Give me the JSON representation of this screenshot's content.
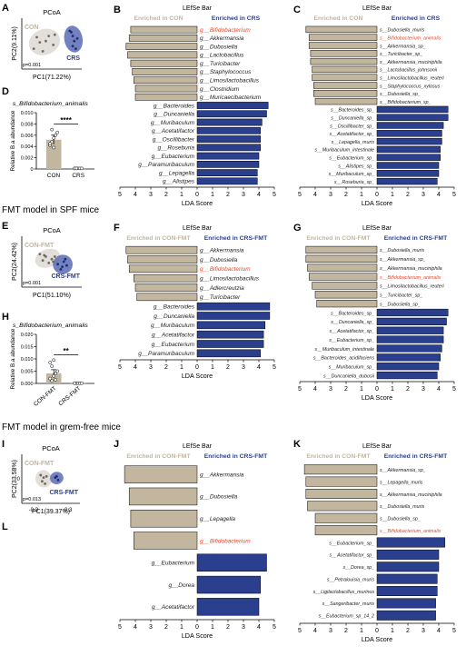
{
  "sections": [
    {
      "title": ""
    },
    {
      "title": "FMT model in SPF mice"
    },
    {
      "title": "FMT model in grem-free mice"
    }
  ],
  "colors": {
    "con": "#c2b69e",
    "crs": "#2b3f8f",
    "highlight": "#e8472a",
    "ellipse_con": "#d8d3cc",
    "ellipse_crs": "#5a6bb5"
  },
  "chart_data": [
    {
      "panel": "A",
      "type": "scatter",
      "title": "PCoA",
      "xlabel": "PC1(71.22%)",
      "ylabel": "PC2(9.11%)",
      "pvalue": "p=0.001",
      "series": [
        {
          "name": "CON",
          "color": "#c2b69e",
          "points": [
            [
              -0.5,
              0.25
            ],
            [
              -0.3,
              -0.3
            ],
            [
              -0.4,
              0.05
            ],
            [
              -0.1,
              0.3
            ],
            [
              -0.2,
              0.1
            ],
            [
              0.05,
              -0.05
            ],
            [
              -0.6,
              -0.2
            ],
            [
              0.1,
              0.35
            ]
          ]
        },
        {
          "name": "CRS",
          "color": "#2b3f8f",
          "points": [
            [
              0.6,
              0.5
            ],
            [
              0.7,
              0.3
            ],
            [
              0.75,
              0.1
            ],
            [
              0.8,
              -0.2
            ],
            [
              0.65,
              0.45
            ],
            [
              0.7,
              -0.1
            ],
            [
              0.85,
              0.2
            ]
          ]
        }
      ]
    },
    {
      "panel": "B",
      "type": "bar",
      "title": "LEfSe Bar",
      "legend_left": "Enriched in CON",
      "legend_right": "Enriched in CRS",
      "xlabel": "LDA Score",
      "xticks": [
        "5",
        "4",
        "3",
        "2",
        "1",
        "0",
        "1",
        "2",
        "3",
        "4",
        "5"
      ],
      "highlight": "g__Bifidobacterium",
      "bars": [
        {
          "label": "g__Bifidobacterium",
          "value": -4.3
        },
        {
          "label": "g__Akkermansia",
          "value": -4.4
        },
        {
          "label": "g__Dubosiella",
          "value": -4.6
        },
        {
          "label": "g__Lactobacillus",
          "value": -4.5
        },
        {
          "label": "g__Turicibacter",
          "value": -4.3
        },
        {
          "label": "g__Staphylococcus",
          "value": -4.2
        },
        {
          "label": "g__Limosilactobacillus",
          "value": -4.1
        },
        {
          "label": "g__Clostridium",
          "value": -4.0
        },
        {
          "label": "g__Muricaecibacterium",
          "value": -4.0
        },
        {
          "label": "g__Bacteroides",
          "value": 4.6
        },
        {
          "label": "g__Duncaniella",
          "value": 4.5
        },
        {
          "label": "g__Muribaculum",
          "value": 4.2
        },
        {
          "label": "g__Acetatifactor",
          "value": 4.1
        },
        {
          "label": "g__Oscillibacter",
          "value": 4.1
        },
        {
          "label": "g__Roseburia",
          "value": 4.1
        },
        {
          "label": "g__Eubacterium",
          "value": 4.0
        },
        {
          "label": "g__Paramuribaculum",
          "value": 4.0
        },
        {
          "label": "g__Lepagella",
          "value": 3.9
        },
        {
          "label": "g__Alistipes",
          "value": 3.9
        }
      ]
    },
    {
      "panel": "C",
      "type": "bar",
      "title": "LEfSe Bar",
      "legend_left": "Enriched in CON",
      "legend_right": "Enriched in CRS",
      "xlabel": "LDA Score",
      "xticks": [
        "5",
        "4",
        "3",
        "2",
        "1",
        "0",
        "1",
        "2",
        "3",
        "4",
        "5"
      ],
      "highlight": "s__Bifidobacterium_animalis",
      "bars": [
        {
          "label": "s__Dubosiella_muris",
          "value": -4.6
        },
        {
          "label": "s__Bifidobacterium_animalis",
          "value": -4.4
        },
        {
          "label": "s__Akkermansia_sp_",
          "value": -4.4
        },
        {
          "label": "s__Turicibacter_sp_",
          "value": -4.3
        },
        {
          "label": "s__Akkermansia_muciniphila",
          "value": -4.3
        },
        {
          "label": "s__Lactobacillus_johnsonii",
          "value": -4.2
        },
        {
          "label": "s__Limosilactobacillus_reuteri",
          "value": -4.2
        },
        {
          "label": "s__Staphylococcus_xylosus",
          "value": -4.1
        },
        {
          "label": "s__Dubosiella_sp_",
          "value": -4.1
        },
        {
          "label": "s__Bifidobacterium_sp_",
          "value": -4.0
        },
        {
          "label": "s__Bacteroides_sp_",
          "value": 4.6
        },
        {
          "label": "s__Duncaniella_sp_",
          "value": 4.6
        },
        {
          "label": "s__Oscillibacter_sp_",
          "value": 4.3
        },
        {
          "label": "s__Acetatifactor_sp_",
          "value": 4.2
        },
        {
          "label": "s__Lepagella_muris",
          "value": 4.2
        },
        {
          "label": "s__Muribaculum_intestinale",
          "value": 4.1
        },
        {
          "label": "s__Eubacterium_sp_",
          "value": 4.1
        },
        {
          "label": "s__Alistipes_sp_",
          "value": 4.0
        },
        {
          "label": "s__Muribaculum_sp_",
          "value": 4.0
        },
        {
          "label": "s__Roseburia_sp_",
          "value": 3.9
        }
      ]
    },
    {
      "panel": "D",
      "type": "bar",
      "title": "s_Bifidobacterium_animalis",
      "ylabel": "Relative B.a abundance",
      "categories": [
        "CON",
        "CRS"
      ],
      "values": [
        0.0052,
        0.0001
      ],
      "errors": [
        0.0008,
        5e-05
      ],
      "yticks": [
        "0",
        "0.002",
        "0.004",
        "0.006",
        "0.008",
        "0.010"
      ],
      "ylim": [
        0,
        0.01
      ],
      "significance": "****",
      "points": [
        [
          0.0042,
          0.0048,
          0.0055,
          0.006,
          0.0065,
          0.0045,
          0.007,
          0.0038
        ],
        [
          0.0001,
          0.0001,
          0.0001,
          0.0001,
          0.0001,
          0.0001,
          0.0001
        ]
      ]
    },
    {
      "panel": "E",
      "type": "scatter",
      "title": "PCoA",
      "xlabel": "PC1(51.10%)",
      "ylabel": "PC2(24.42%)",
      "pvalue": "p=0.001",
      "series": [
        {
          "name": "CON-FMT",
          "color": "#c2b69e",
          "points": [
            [
              -0.4,
              0.3
            ],
            [
              -0.2,
              0.2
            ],
            [
              -0.3,
              0.05
            ],
            [
              0.0,
              0.1
            ],
            [
              -0.1,
              -0.05
            ],
            [
              0.1,
              0.2
            ],
            [
              -0.25,
              0.25
            ],
            [
              0.05,
              0.0
            ]
          ]
        },
        {
          "name": "CRS-FMT",
          "color": "#2b3f8f",
          "points": [
            [
              0.2,
              -0.1
            ],
            [
              0.35,
              -0.2
            ],
            [
              0.4,
              0.0
            ],
            [
              0.5,
              -0.15
            ],
            [
              0.3,
              -0.3
            ],
            [
              0.45,
              0.1
            ]
          ]
        }
      ]
    },
    {
      "panel": "F",
      "type": "bar",
      "title": "LEfSe Bar",
      "legend_left": "Enriched in CON-FMT",
      "legend_right": "Enriched in CRS-FMT",
      "xlabel": "LDA Score",
      "xticks": [
        "5",
        "4",
        "3",
        "2",
        "1",
        "0",
        "1",
        "2",
        "3",
        "4",
        "5"
      ],
      "highlight": "g__Bifidobacterium",
      "bars": [
        {
          "label": "g__Akkermansia",
          "value": -4.6
        },
        {
          "label": "g__Dubosiella",
          "value": -4.5
        },
        {
          "label": "g__Bifidobacterium",
          "value": -4.4
        },
        {
          "label": "g__Limosilactobacillus",
          "value": -4.1
        },
        {
          "label": "g__Adlercreutzia",
          "value": -4.0
        },
        {
          "label": "g__Turicibacter",
          "value": -3.9
        },
        {
          "label": "g__Bacteroides",
          "value": 4.7
        },
        {
          "label": "g__Duncaniella",
          "value": 4.7
        },
        {
          "label": "g__Muribaculum",
          "value": 4.4
        },
        {
          "label": "g__Acetatifactor",
          "value": 4.3
        },
        {
          "label": "g__Eubacterium",
          "value": 4.3
        },
        {
          "label": "g__Paramuribaculum",
          "value": 4.1
        }
      ]
    },
    {
      "panel": "G",
      "type": "bar",
      "title": "LEfSe Bar",
      "legend_left": "Enriched in CON-FMT",
      "legend_right": "Enriched in CRS-FMT",
      "xlabel": "LDA Score",
      "xticks": [
        "5",
        "4",
        "3",
        "2",
        "1",
        "0",
        "1",
        "2",
        "3",
        "4",
        "5"
      ],
      "highlight": "s__Bifidobacterium_animalis",
      "bars": [
        {
          "label": "s__Dubosiella_muris",
          "value": -4.6
        },
        {
          "label": "s__Akkermansia_sp_",
          "value": -4.6
        },
        {
          "label": "s__Akkermansia_muciniphila",
          "value": -4.5
        },
        {
          "label": "s__Bifidobacterium_animalis",
          "value": -4.4
        },
        {
          "label": "s__Limosilactobacillus_reuteri",
          "value": -4.2
        },
        {
          "label": "s__Turicibacter_sp_",
          "value": -4.0
        },
        {
          "label": "s__Dubosiella_sp_",
          "value": -3.9
        },
        {
          "label": "s__Bacteroides_sp_",
          "value": 4.6
        },
        {
          "label": "s__Duncaniella_sp_",
          "value": 4.5
        },
        {
          "label": "s__Acetatifactor_sp_",
          "value": 4.3
        },
        {
          "label": "s__Eubacterium_sp_",
          "value": 4.3
        },
        {
          "label": "s__Muribaculum_intestinale",
          "value": 4.2
        },
        {
          "label": "s__Bacteroides_acidifaciens",
          "value": 4.1
        },
        {
          "label": "s__Muribaculum_sp_",
          "value": 4.0
        },
        {
          "label": "s__Duncaniella_dubosii",
          "value": 3.9
        }
      ]
    },
    {
      "panel": "H",
      "type": "bar",
      "title": "s_Bifidobacterium_animalis",
      "ylabel": "Relative B.a abundance",
      "categories": [
        "CON-FMT",
        "CRS-FMT"
      ],
      "values": [
        0.0041,
        0.0001
      ],
      "errors": [
        0.0015,
        5e-05
      ],
      "yticks": [
        "0.000",
        "0.005",
        "0.010",
        "0.015",
        "0.020"
      ],
      "ylim": [
        0,
        0.02
      ],
      "significance": "**",
      "points": [
        [
          0.002,
          0.001,
          0.003,
          0.004,
          0.005,
          0.0085,
          0.007,
          0.0095,
          0.0015
        ],
        [
          0.0001,
          0.0001,
          0.0001,
          0.0001,
          0.0001,
          0.0001
        ]
      ]
    },
    {
      "panel": "I",
      "type": "scatter",
      "title": "PCoA",
      "xlabel": "PC1(39.37%)",
      "ylabel": "PC2(33.58%)",
      "pvalue": "p=0.013",
      "xticks": [
        "-0.3",
        "0.3"
      ],
      "yticks": [
        "0"
      ],
      "series": [
        {
          "name": "CON-FMT",
          "color": "#c2b69e",
          "points": [
            [
              -0.35,
              0.15
            ],
            [
              -0.3,
              -0.1
            ],
            [
              -0.25,
              0.05
            ],
            [
              -0.2,
              -0.2
            ],
            [
              -0.15,
              0.1
            ]
          ]
        },
        {
          "name": "CRS-FMT",
          "color": "#2b3f8f",
          "points": [
            [
              0.15,
              0.05
            ],
            [
              0.2,
              0.1
            ],
            [
              0.25,
              -0.05
            ]
          ]
        }
      ]
    },
    {
      "panel": "J",
      "type": "bar",
      "title": "LEfSe Bar",
      "legend_left": "Enriched in CON-FMT",
      "legend_right": "Enriched in CRS-FMT",
      "xlabel": "LDA Score",
      "xticks": [
        "5",
        "4",
        "3",
        "2",
        "1",
        "0",
        "1",
        "2",
        "3",
        "4",
        "5"
      ],
      "highlight": "g__Bifidobacterium",
      "bars": [
        {
          "label": "g__Akkermansia",
          "value": -4.7
        },
        {
          "label": "g__Dubosiella",
          "value": -4.4
        },
        {
          "label": "g__Lepagella",
          "value": -4.3
        },
        {
          "label": "g__Bifidobacterium",
          "value": -4.1
        },
        {
          "label": "g__Eubacterium",
          "value": 4.5
        },
        {
          "label": "g__Dorea",
          "value": 4.1
        },
        {
          "label": "g__Acetatifactor",
          "value": 4.0
        }
      ]
    },
    {
      "panel": "K",
      "type": "bar",
      "title": "LEfSe Bar",
      "legend_left": "Enriched in CON-FMT",
      "legend_right": "Enriched in CRS-FMT",
      "xlabel": "LDA Score",
      "xticks": [
        "5",
        "4",
        "3",
        "2",
        "1",
        "0",
        "1",
        "2",
        "3",
        "4",
        "5"
      ],
      "highlight": "s__Bifidobacterium_animalis",
      "bars": [
        {
          "label": "s__Akkermansia_sp_",
          "value": -4.7
        },
        {
          "label": "s__Lepagella_muris",
          "value": -4.6
        },
        {
          "label": "s__Akkermansia_muciniphila",
          "value": -4.6
        },
        {
          "label": "s__Dubosiella_muris",
          "value": -4.5
        },
        {
          "label": "s__Dubosiella_sp_",
          "value": -4.0
        },
        {
          "label": "s__Bifidobacterium_animalis",
          "value": -4.0
        },
        {
          "label": "s__Eubacterium_sp_",
          "value": 4.4
        },
        {
          "label": "s__Acetatifactor_sp_",
          "value": 4.0
        },
        {
          "label": "s__Dorea_sp_",
          "value": 4.0
        },
        {
          "label": "s__Petralouisia_muris",
          "value": 3.9
        },
        {
          "label": "s__Ligilactobacillus_murinus",
          "value": 3.9
        },
        {
          "label": "s__Sangeribacter_muris",
          "value": 3.8
        },
        {
          "label": "s__Eubacterium_sp_14_2",
          "value": 3.8
        }
      ]
    }
  ]
}
